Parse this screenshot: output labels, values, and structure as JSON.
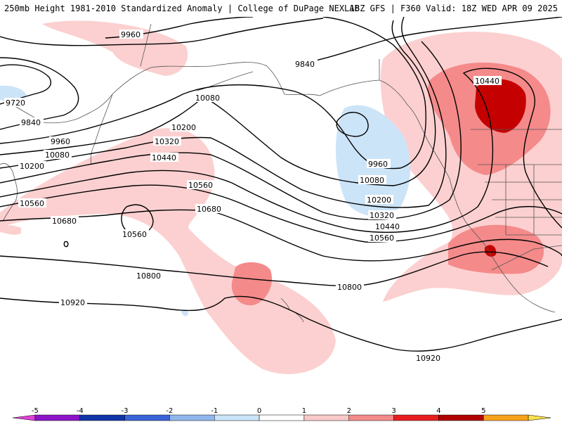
{
  "header": {
    "left_title": "250mb Height 1981-2010 Standardized Anomaly | College of DuPage NEXLAB",
    "right_title": "18Z GFS | F360 Valid: 18Z WED APR 09 2025"
  },
  "contour_labels": [
    "9960",
    "9840",
    "9720",
    "9840",
    "9960",
    "10080",
    "10200",
    "10080",
    "10200",
    "10320",
    "10440",
    "10560",
    "10680",
    "10560",
    "10800",
    "10920",
    "10440",
    "9960",
    "10080",
    "10200",
    "10320",
    "10440",
    "10560",
    "10800",
    "10920",
    "10560",
    "10680"
  ],
  "colorbar": {
    "ticks": [
      "-5",
      "-4",
      "-3",
      "-2",
      "-1",
      "0",
      "1",
      "2",
      "3",
      "4",
      "5"
    ],
    "colors": [
      "#e040d8",
      "#8a14c8",
      "#1034a8",
      "#3a64d8",
      "#90b6ee",
      "#cce4f8",
      "#ffffff",
      "#f9c9c9",
      "#f48a8a",
      "#e81e1e",
      "#b00000",
      "#f7a21b",
      "#f9e04a"
    ]
  },
  "anomaly_colors": {
    "neg1": "#cce4f8",
    "pos1": "#fcd0d0",
    "pos2": "#f58a8a",
    "pos3": "#c40000"
  }
}
